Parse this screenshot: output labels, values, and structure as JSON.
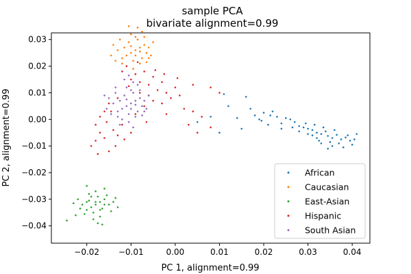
{
  "chart_data": {
    "type": "scatter",
    "title": "sample PCA",
    "subtitle": "bivariate alignment=0.99",
    "xlabel": "PC 1, alignment=0.99",
    "ylabel": "PC 2, alignment=0.99",
    "xlim": [
      -0.028,
      0.044
    ],
    "ylim": [
      -0.0465,
      0.0325
    ],
    "xticks": [
      -0.02,
      -0.01,
      0.0,
      0.01,
      0.02,
      0.03,
      0.04
    ],
    "xtick_labels": [
      "−0.02",
      "−0.01",
      "0.00",
      "0.01",
      "0.02",
      "0.03",
      "0.04"
    ],
    "yticks": [
      -0.04,
      -0.03,
      -0.02,
      -0.01,
      0.0,
      0.01,
      0.02,
      0.03
    ],
    "ytick_labels": [
      "−0.04",
      "−0.03",
      "−0.02",
      "−0.01",
      "0.00",
      "0.01",
      "0.02",
      "0.03"
    ],
    "grid": false,
    "legend_position": "lower-right",
    "series": [
      {
        "name": "African",
        "color": "#1f77b4",
        "points": [
          [
            0.033,
            -0.0055
          ],
          [
            0.0345,
            -0.0062
          ],
          [
            0.032,
            -0.005
          ],
          [
            0.0355,
            -0.007
          ],
          [
            0.031,
            -0.004
          ],
          [
            0.0365,
            -0.0058
          ],
          [
            0.03,
            -0.0035
          ],
          [
            0.0375,
            -0.0075
          ],
          [
            0.029,
            -0.003
          ],
          [
            0.0385,
            -0.0068
          ],
          [
            0.028,
            -0.0025
          ],
          [
            0.0395,
            -0.008
          ],
          [
            0.027,
            -0.001
          ],
          [
            0.026,
            0.0
          ],
          [
            0.025,
            0.0005
          ],
          [
            0.024,
            -0.0015
          ],
          [
            0.023,
            0.001
          ],
          [
            0.022,
            0.003
          ],
          [
            0.021,
            -0.002
          ],
          [
            0.02,
            0.0025
          ],
          [
            0.019,
            0.0
          ],
          [
            0.018,
            0.0015
          ],
          [
            0.017,
            0.004
          ],
          [
            0.016,
            0.0085
          ],
          [
            0.015,
            -0.0035
          ],
          [
            0.014,
            0.0005
          ],
          [
            0.012,
            0.005
          ],
          [
            0.011,
            0.0095
          ],
          [
            0.01,
            -0.005
          ],
          [
            0.008,
            0.001
          ],
          [
            0.005,
            -0.001
          ],
          [
            0.032,
            -0.007
          ],
          [
            0.034,
            -0.0045
          ],
          [
            0.035,
            -0.0085
          ],
          [
            0.036,
            -0.004
          ],
          [
            0.031,
            -0.006
          ],
          [
            0.037,
            -0.009
          ],
          [
            0.039,
            -0.006
          ],
          [
            0.04,
            -0.0095
          ],
          [
            0.041,
            -0.0055
          ],
          [
            0.033,
            -0.009
          ],
          [
            0.03,
            -0.0055
          ],
          [
            0.028,
            -0.0045
          ],
          [
            0.0295,
            -0.0015
          ],
          [
            0.0335,
            -0.003
          ],
          [
            0.0355,
            -0.01
          ],
          [
            0.038,
            -0.0105
          ],
          [
            0.0405,
            -0.0075
          ],
          [
            0.0315,
            -0.002
          ],
          [
            0.0265,
            -0.003
          ],
          [
            0.0345,
            -0.011
          ],
          [
            0.0325,
            -0.008
          ],
          [
            0.024,
            -0.0035
          ],
          [
            0.0215,
            0.0015
          ],
          [
            0.0195,
            -0.0005
          ]
        ]
      },
      {
        "name": "Caucasian",
        "color": "#ff7f0e",
        "points": [
          [
            -0.009,
            0.026
          ],
          [
            -0.008,
            0.027
          ],
          [
            -0.01,
            0.025
          ],
          [
            -0.007,
            0.028
          ],
          [
            -0.011,
            0.024
          ],
          [
            -0.0085,
            0.03
          ],
          [
            -0.0095,
            0.022
          ],
          [
            -0.0075,
            0.023
          ],
          [
            -0.0105,
            0.029
          ],
          [
            -0.0065,
            0.025
          ],
          [
            -0.0115,
            0.027
          ],
          [
            -0.009,
            0.031
          ],
          [
            -0.008,
            0.021
          ],
          [
            -0.012,
            0.023
          ],
          [
            -0.006,
            0.027
          ],
          [
            -0.01,
            0.032
          ],
          [
            -0.0075,
            0.033
          ],
          [
            -0.011,
            0.02
          ],
          [
            -0.013,
            0.026
          ],
          [
            -0.0055,
            0.024
          ],
          [
            -0.0095,
            0.019
          ],
          [
            -0.014,
            0.028
          ],
          [
            -0.005,
            0.029
          ],
          [
            -0.0125,
            0.03
          ],
          [
            -0.0085,
            0.0345
          ],
          [
            -0.0145,
            0.024
          ],
          [
            -0.0065,
            0.0215
          ],
          [
            -0.0105,
            0.035
          ],
          [
            -0.012,
            0.021
          ],
          [
            -0.007,
            0.031
          ],
          [
            -0.009,
            0.024
          ],
          [
            -0.008,
            0.0255
          ],
          [
            -0.01,
            0.0275
          ],
          [
            -0.006,
            0.023
          ],
          [
            -0.0135,
            0.022
          ]
        ]
      },
      {
        "name": "East-Asian",
        "color": "#2ca02c",
        "points": [
          [
            -0.018,
            -0.032
          ],
          [
            -0.017,
            -0.031
          ],
          [
            -0.019,
            -0.033
          ],
          [
            -0.016,
            -0.03
          ],
          [
            -0.02,
            -0.034
          ],
          [
            -0.0175,
            -0.029
          ],
          [
            -0.0185,
            -0.035
          ],
          [
            -0.0165,
            -0.0335
          ],
          [
            -0.0195,
            -0.0305
          ],
          [
            -0.015,
            -0.032
          ],
          [
            -0.021,
            -0.032
          ],
          [
            -0.018,
            -0.027
          ],
          [
            -0.017,
            -0.0365
          ],
          [
            -0.0155,
            -0.0285
          ],
          [
            -0.0205,
            -0.0355
          ],
          [
            -0.014,
            -0.031
          ],
          [
            -0.022,
            -0.03
          ],
          [
            -0.0185,
            -0.0375
          ],
          [
            -0.016,
            -0.026
          ],
          [
            -0.0195,
            -0.028
          ],
          [
            -0.0145,
            -0.0345
          ],
          [
            -0.0215,
            -0.0335
          ],
          [
            -0.0175,
            -0.039
          ],
          [
            -0.023,
            -0.0315
          ],
          [
            -0.0135,
            -0.0295
          ],
          [
            -0.02,
            -0.025
          ],
          [
            -0.0165,
            -0.0395
          ],
          [
            -0.0225,
            -0.036
          ],
          [
            -0.0245,
            -0.038
          ],
          [
            -0.013,
            -0.033
          ],
          [
            -0.018,
            -0.031
          ],
          [
            -0.017,
            -0.034
          ],
          [
            -0.019,
            -0.029
          ],
          [
            -0.016,
            -0.032
          ],
          [
            -0.02,
            -0.031
          ]
        ]
      },
      {
        "name": "Hispanic",
        "color": "#d62728",
        "points": [
          [
            -0.008,
            0.014
          ],
          [
            -0.006,
            0.013
          ],
          [
            -0.004,
            0.011
          ],
          [
            -0.002,
            0.01
          ],
          [
            -0.003,
            0.014
          ],
          [
            -0.005,
            0.016
          ],
          [
            -0.007,
            0.018
          ],
          [
            -0.009,
            0.017
          ],
          [
            -0.01,
            0.015
          ],
          [
            -0.011,
            0.02
          ],
          [
            -0.012,
            0.018
          ],
          [
            -0.013,
            0.008
          ],
          [
            -0.015,
            0.006
          ],
          [
            -0.016,
            0.003
          ],
          [
            -0.017,
            0.001
          ],
          [
            -0.018,
            -0.002
          ],
          [
            -0.017,
            -0.005
          ],
          [
            -0.016,
            -0.007
          ],
          [
            -0.018,
            -0.008
          ],
          [
            -0.019,
            -0.01
          ],
          [
            -0.0175,
            -0.013
          ],
          [
            -0.015,
            -0.012
          ],
          [
            -0.014,
            -0.004
          ],
          [
            -0.013,
            -0.006
          ],
          [
            -0.012,
            -0.002
          ],
          [
            -0.01,
            -0.005
          ],
          [
            -0.009,
            0.002
          ],
          [
            -0.007,
            0.005
          ],
          [
            -0.005,
            0.007
          ],
          [
            -0.003,
            0.006
          ],
          [
            -0.001,
            0.008
          ],
          [
            0.0,
            0.012
          ],
          [
            0.001,
            0.009
          ],
          [
            0.002,
            0.004
          ],
          [
            0.004,
            0.003
          ],
          [
            0.006,
            0.001
          ],
          [
            0.008,
            -0.003
          ],
          [
            0.004,
            0.013
          ],
          [
            0.008,
            0.012
          ],
          [
            0.01,
            0.01
          ],
          [
            0.005,
            -0.005
          ],
          [
            0.003,
            -0.002
          ],
          [
            -0.002,
            0.002
          ],
          [
            -0.006,
            0.009
          ],
          [
            -0.008,
            0.01
          ],
          [
            -0.0105,
            0.0125
          ],
          [
            -0.0085,
            0.0215
          ],
          [
            -0.0045,
            0.0185
          ],
          [
            -0.0025,
            0.017
          ],
          [
            0.0005,
            0.0155
          ],
          [
            -0.0145,
            0.003
          ],
          [
            -0.0155,
            -0.001
          ],
          [
            -0.0115,
            -0.0075
          ],
          [
            -0.0135,
            -0.01
          ],
          [
            -0.0065,
            -0.001
          ]
        ]
      },
      {
        "name": "South Asian",
        "color": "#9467bd",
        "points": [
          [
            -0.01,
            0.006
          ],
          [
            -0.009,
            0.007
          ],
          [
            -0.011,
            0.005
          ],
          [
            -0.008,
            0.008
          ],
          [
            -0.012,
            0.004
          ],
          [
            -0.0095,
            0.01
          ],
          [
            -0.0105,
            0.002
          ],
          [
            -0.0085,
            0.003
          ],
          [
            -0.0115,
            0.009
          ],
          [
            -0.0075,
            0.005
          ],
          [
            -0.0125,
            0.007
          ],
          [
            -0.01,
            0.011
          ],
          [
            -0.009,
            0.001
          ],
          [
            -0.013,
            0.003
          ],
          [
            -0.007,
            0.007
          ],
          [
            -0.011,
            0.012
          ],
          [
            -0.0085,
            0.013
          ],
          [
            -0.012,
            0.0
          ],
          [
            -0.014,
            0.006
          ],
          [
            -0.0065,
            0.004
          ],
          [
            -0.0105,
            -0.001
          ],
          [
            -0.015,
            0.008
          ],
          [
            -0.006,
            0.009
          ],
          [
            -0.0135,
            0.01
          ],
          [
            -0.0095,
            0.014
          ],
          [
            -0.0155,
            0.004
          ],
          [
            -0.0075,
            0.0015
          ],
          [
            -0.0115,
            0.015
          ],
          [
            -0.013,
            0.001
          ],
          [
            -0.008,
            0.011
          ],
          [
            -0.01,
            0.004
          ],
          [
            -0.009,
            0.0055
          ],
          [
            -0.011,
            0.0075
          ],
          [
            -0.007,
            0.003
          ],
          [
            -0.0145,
            0.002
          ],
          [
            -0.016,
            0.009
          ],
          [
            -0.0125,
            -0.002
          ],
          [
            -0.0095,
            -0.003
          ],
          [
            -0.0135,
            0.012
          ],
          [
            -0.0105,
            0.0165
          ]
        ]
      }
    ]
  }
}
